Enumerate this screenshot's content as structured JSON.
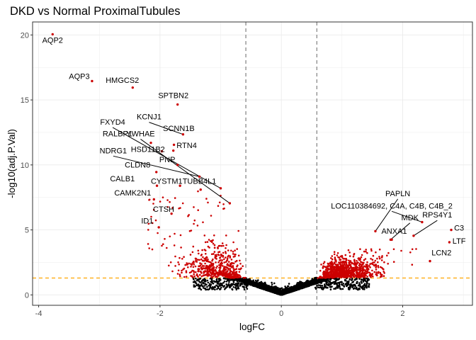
{
  "chart_data": {
    "type": "scatter",
    "title": "DKD vs Normal ProximalTubules",
    "xlabel": "logFC",
    "ylabel": "-log10(adj.P.Val)",
    "xlim": [
      -4.1,
      3.15
    ],
    "ylim": [
      -0.8,
      21.0
    ],
    "x_ticks": [
      -4,
      -2,
      0,
      2
    ],
    "y_ticks": [
      0,
      5,
      10,
      15,
      20
    ],
    "grid": true,
    "legend": "none",
    "colors": {
      "significant": "#cc0000",
      "nonsignificant": "#000000",
      "logfc_cutoff_line": "#808080",
      "pval_cutoff_line": "#ffa500",
      "panel_background": "#ffffff",
      "grid": "#ebebeb"
    },
    "logfc_cutoffs": [
      -0.585,
      0.585
    ],
    "pval_cutoff": 1.3,
    "labeled_points": [
      {
        "gene": "AQP2",
        "x": -3.77,
        "y": 20.05,
        "lx": -3.77,
        "ly": 19.4,
        "leader": false
      },
      {
        "gene": "AQP3",
        "x": -3.12,
        "y": 16.45,
        "lx": -3.33,
        "ly": 16.6,
        "leader": false
      },
      {
        "gene": "HMGCS2",
        "x": -2.45,
        "y": 15.95,
        "lx": -2.62,
        "ly": 16.3,
        "leader": false
      },
      {
        "gene": "SPTBN2",
        "x": -1.71,
        "y": 14.65,
        "lx": -1.78,
        "ly": 15.15,
        "leader": false
      },
      {
        "gene": "KCNJ1",
        "x": -1.62,
        "y": 12.35,
        "lx": -2.18,
        "ly": 13.5,
        "leader": true
      },
      {
        "gene": "FXYD4",
        "x": -1.0,
        "y": 8.2,
        "lx": -2.78,
        "ly": 13.1,
        "leader": true
      },
      {
        "gene": "SCNN1B",
        "x": -1.77,
        "y": 11.55,
        "lx": -1.69,
        "ly": 12.6,
        "leader": false
      },
      {
        "gene": "RALBP1",
        "x": -2.15,
        "y": 11.7,
        "lx": -2.7,
        "ly": 12.2,
        "leader": false
      },
      {
        "gene": "YWHAE",
        "x": -0.85,
        "y": 7.05,
        "lx": -2.32,
        "ly": 12.2,
        "leader": true
      },
      {
        "gene": "HSD11B2",
        "x": -1.97,
        "y": 11.05,
        "lx": -2.2,
        "ly": 11.0,
        "leader": false
      },
      {
        "gene": "RTN4",
        "x": -1.78,
        "y": 11.1,
        "lx": -1.56,
        "ly": 11.3,
        "leader": false
      },
      {
        "gene": "NDRG1",
        "x": -1.35,
        "y": 9.1,
        "lx": -2.77,
        "ly": 10.9,
        "leader": true
      },
      {
        "gene": "PNP",
        "x": -1.71,
        "y": 10.0,
        "lx": -1.88,
        "ly": 10.2,
        "leader": false
      },
      {
        "gene": "CLDN8",
        "x": -2.06,
        "y": 9.45,
        "lx": -2.37,
        "ly": 9.8,
        "leader": false
      },
      {
        "gene": "CALB1",
        "x": -2.05,
        "y": 8.4,
        "lx": -2.62,
        "ly": 8.75,
        "leader": false
      },
      {
        "gene": "CYSTM1",
        "x": -1.67,
        "y": 8.4,
        "lx": -1.89,
        "ly": 8.55,
        "leader": false
      },
      {
        "gene": "TUBB4L1",
        "x": -1.33,
        "y": 8.1,
        "lx": -1.35,
        "ly": 8.55,
        "leader": false
      },
      {
        "gene": "CAMK2N1",
        "x": -2.1,
        "y": 7.35,
        "lx": -2.45,
        "ly": 7.65,
        "leader": false
      },
      {
        "gene": "CTSH",
        "x": -1.81,
        "y": 6.25,
        "lx": -1.94,
        "ly": 6.4,
        "leader": false
      },
      {
        "gene": "ID1",
        "x": -2.02,
        "y": 5.2,
        "lx": -2.21,
        "ly": 5.5,
        "leader": false
      },
      {
        "gene": "PAPLN",
        "x": 1.55,
        "y": 4.9,
        "lx": 1.92,
        "ly": 7.6,
        "leader": true
      },
      {
        "gene": "LOC110384692, C4A, C4B, C4B_2",
        "x": 2.32,
        "y": 5.6,
        "lx": 1.82,
        "ly": 6.65,
        "leader": true
      },
      {
        "gene": "MDK",
        "x": 1.8,
        "y": 4.25,
        "lx": 2.12,
        "ly": 5.75,
        "leader": true
      },
      {
        "gene": "RPS4Y1",
        "x": 2.18,
        "y": 4.55,
        "lx": 2.57,
        "ly": 5.95,
        "leader": true
      },
      {
        "gene": "ANXA1",
        "x": 1.82,
        "y": 4.25,
        "lx": 1.86,
        "ly": 4.7,
        "leader": false
      },
      {
        "gene": "C3",
        "x": 2.8,
        "y": 5.0,
        "lx": 2.93,
        "ly": 4.95,
        "leader": false
      },
      {
        "gene": "LTF",
        "x": 2.77,
        "y": 4.05,
        "lx": 2.93,
        "ly": 3.95,
        "leader": false
      },
      {
        "gene": "LCN2",
        "x": 2.45,
        "y": 2.6,
        "lx": 2.64,
        "ly": 3.05,
        "leader": false
      }
    ],
    "point_count_approx": 8000
  }
}
